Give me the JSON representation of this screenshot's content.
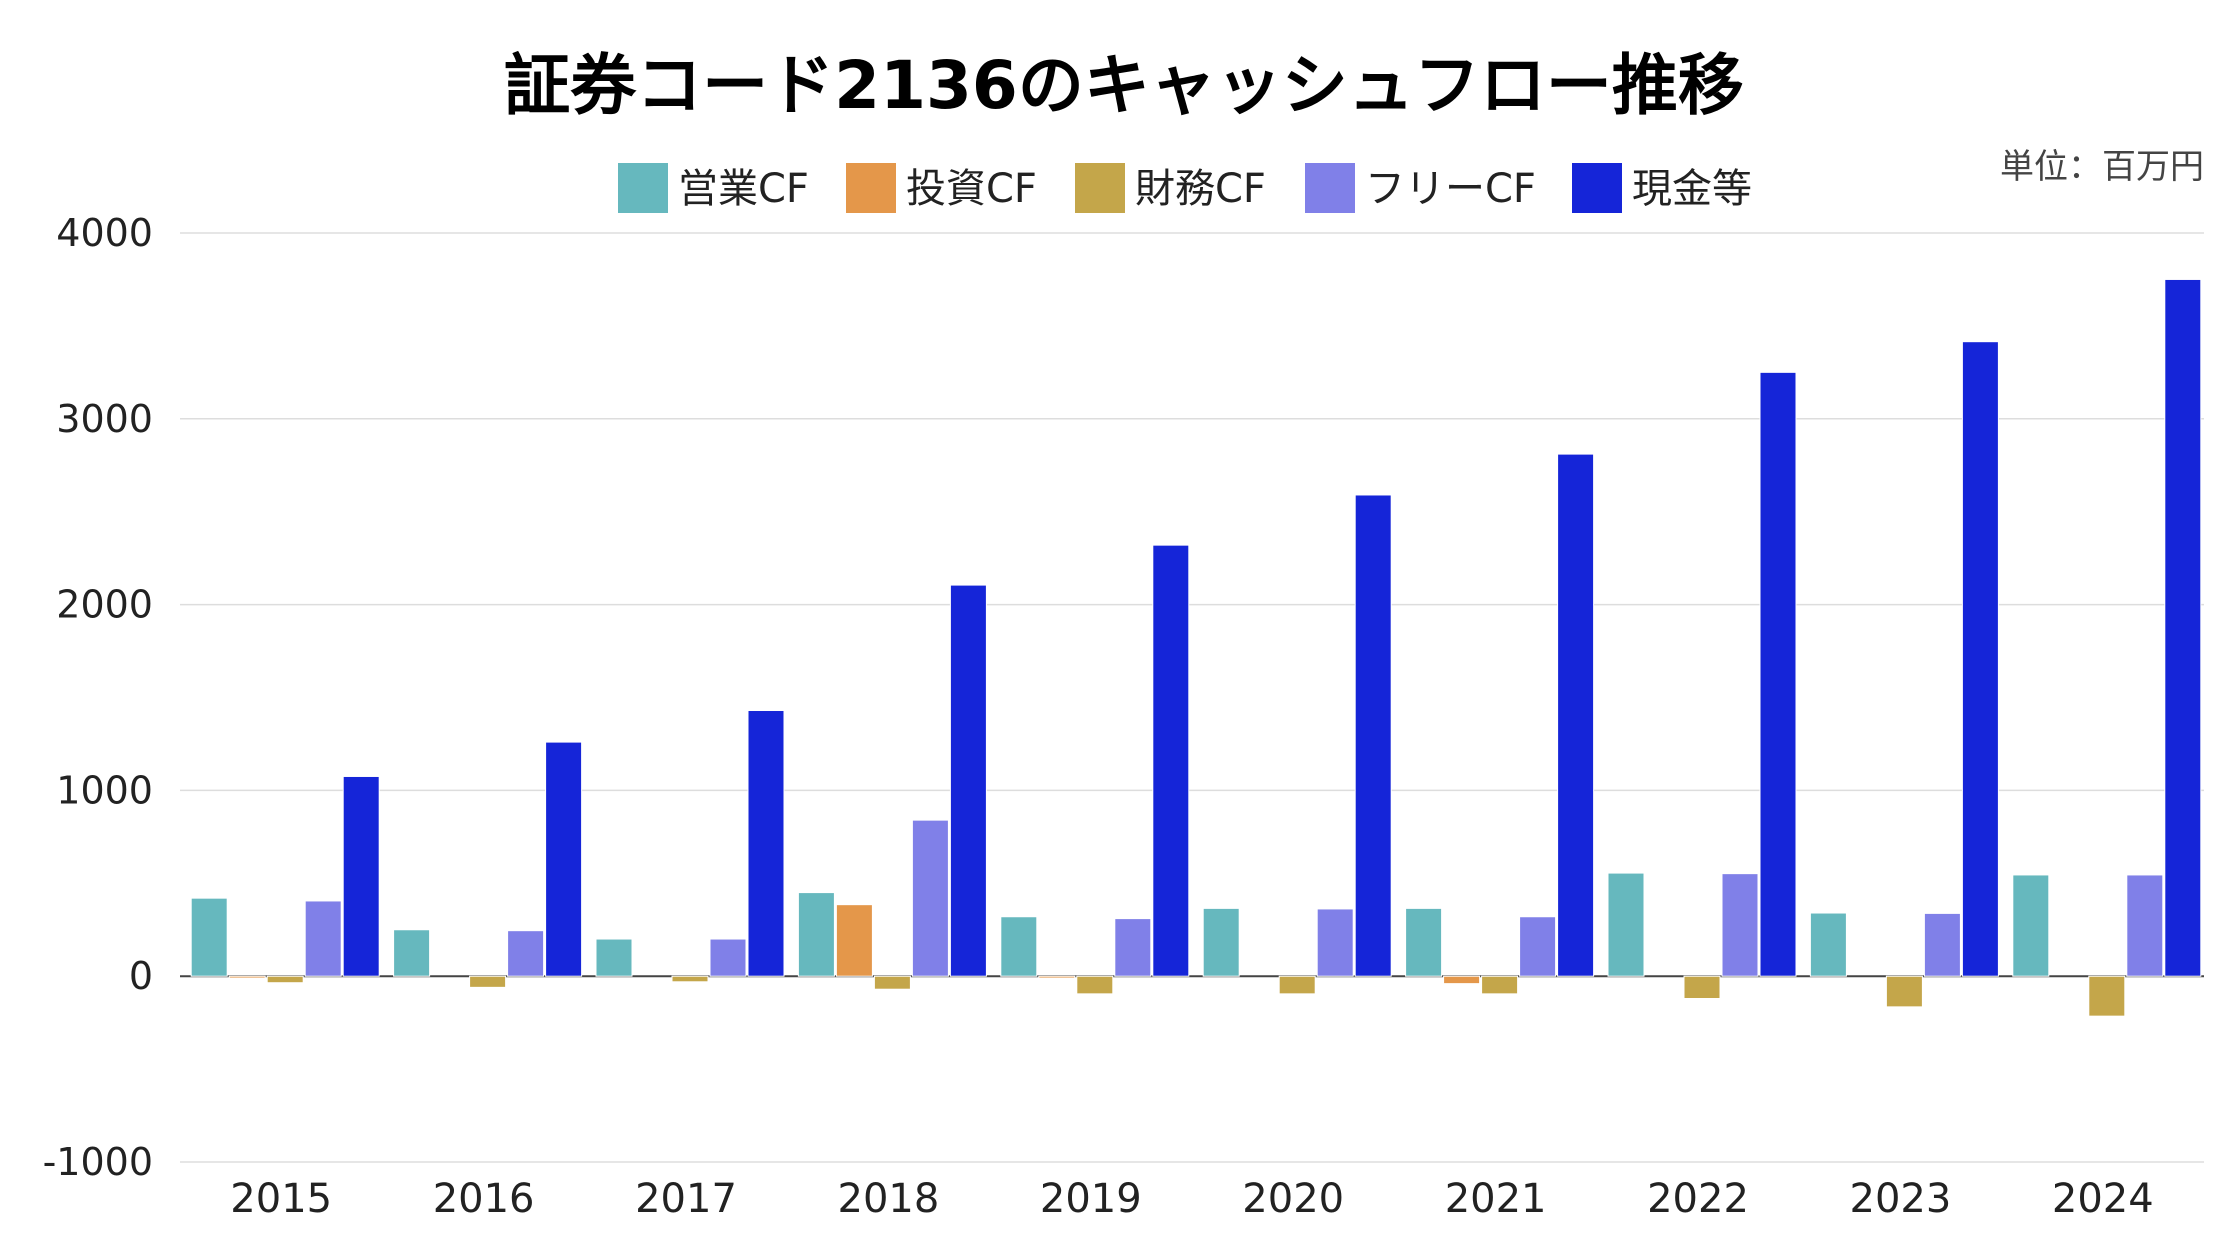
{
  "chart_data": {
    "type": "bar",
    "title": "証券コード2136のキャッシュフロー推移",
    "unit_label": "単位：百万円",
    "categories": [
      "2015",
      "2016",
      "2017",
      "2018",
      "2019",
      "2020",
      "2021",
      "2022",
      "2023",
      "2024"
    ],
    "series": [
      {
        "name": "営業CF",
        "color": "#66b8be",
        "values": [
          420,
          250,
          200,
          450,
          320,
          365,
          365,
          555,
          340,
          545
        ]
      },
      {
        "name": "投資CF",
        "color": "#e4974a",
        "values": [
          -10,
          0,
          0,
          385,
          -10,
          0,
          -40,
          0,
          0,
          0
        ]
      },
      {
        "name": "財務CF",
        "color": "#c4a64a",
        "values": [
          -35,
          -60,
          -30,
          -70,
          -95,
          -95,
          -95,
          -120,
          -165,
          -215
        ]
      },
      {
        "name": "フリーCF",
        "color": "#8080e8",
        "values": [
          405,
          245,
          200,
          840,
          310,
          362,
          320,
          552,
          338,
          545
        ]
      },
      {
        "name": "現金等",
        "color": "#1525d8",
        "values": [
          1075,
          1260,
          1430,
          2105,
          2320,
          2590,
          2810,
          3250,
          3415,
          3750
        ]
      }
    ],
    "ylim": [
      -1000,
      4000
    ],
    "yticks": [
      4000,
      3000,
      2000,
      1000,
      0,
      -1000
    ],
    "grid": true,
    "legend_position": "top-center"
  }
}
